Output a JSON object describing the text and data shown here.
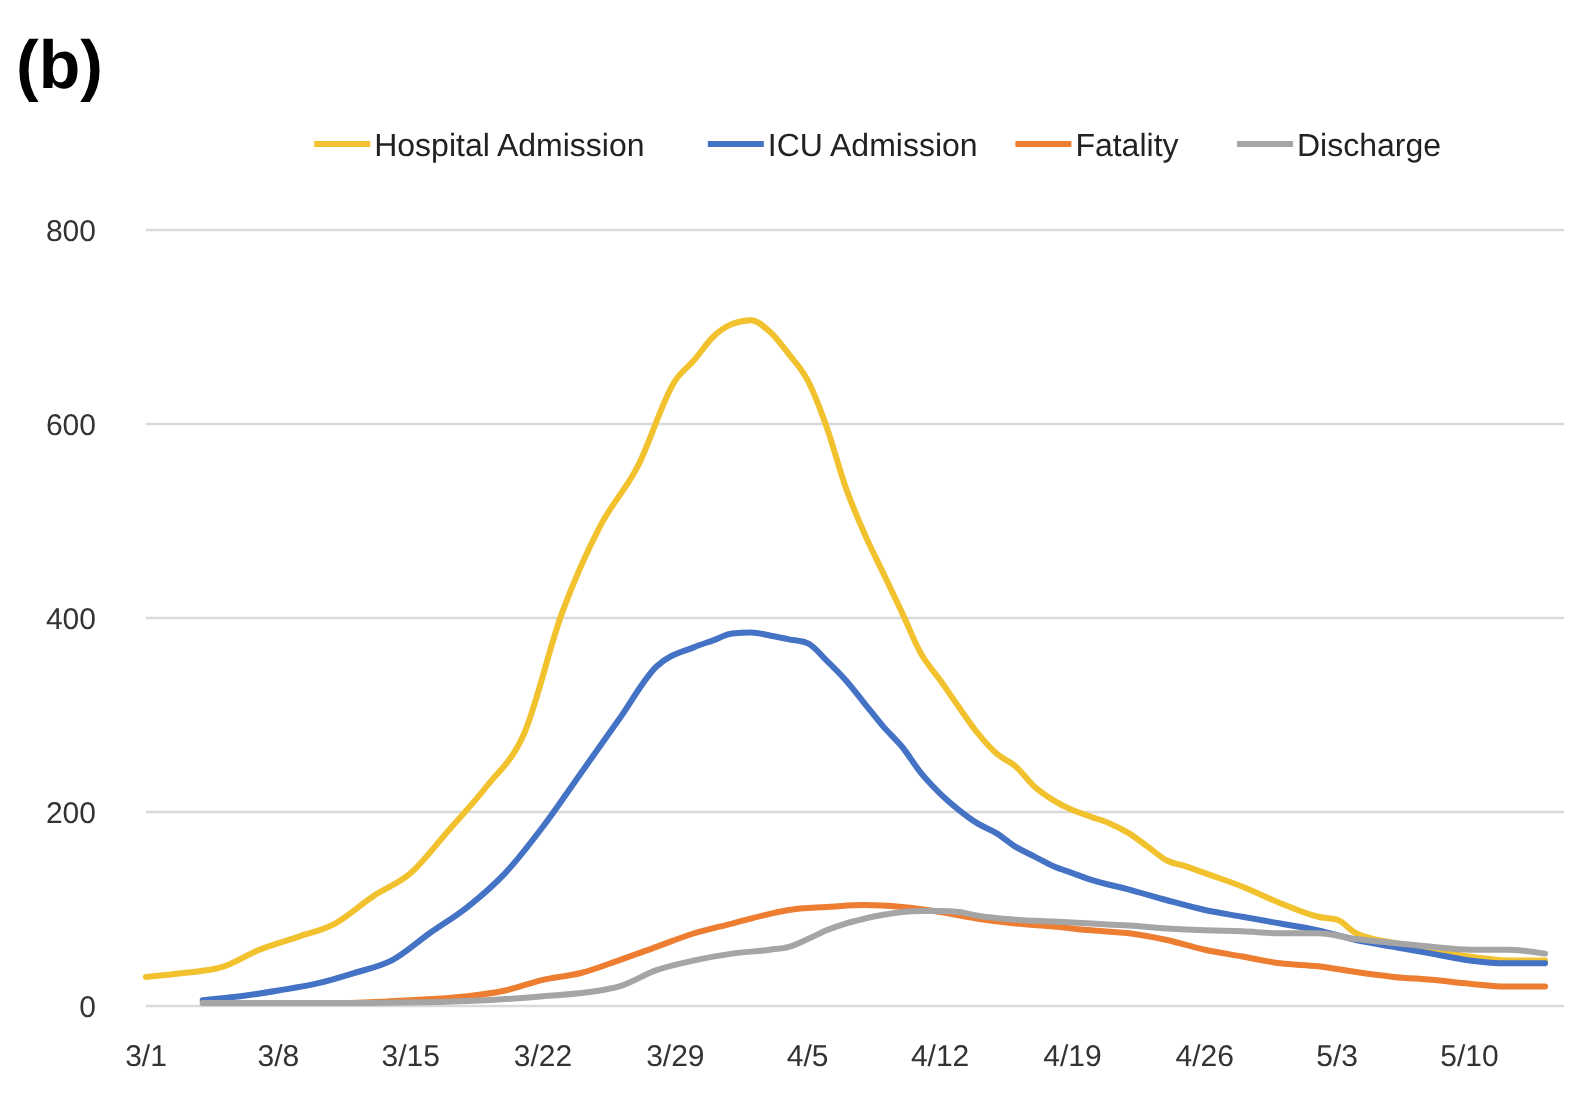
{
  "chart_data": {
    "type": "line",
    "title": "(b)",
    "legend": "top",
    "grid": "y",
    "marker": "none",
    "line_style": "solid",
    "xlim": [
      "--03-01",
      "--05-15"
    ],
    "xticks": [
      {
        "value": "--03-01",
        "label": "3/1"
      },
      {
        "value": "--03-08",
        "label": "3/8"
      },
      {
        "value": "--03-15",
        "label": "3/15"
      },
      {
        "value": "--03-22",
        "label": "3/22"
      },
      {
        "value": "--03-29",
        "label": "3/29"
      },
      {
        "value": "--04-05",
        "label": "4/5"
      },
      {
        "value": "--04-12",
        "label": "4/12"
      },
      {
        "value": "--04-19",
        "label": "4/19"
      },
      {
        "value": "--04-26",
        "label": "4/26"
      },
      {
        "value": "--05-03",
        "label": "5/3"
      },
      {
        "value": "--05-10",
        "label": "5/10"
      }
    ],
    "ylim": [
      0,
      800
    ],
    "yticks": [
      0,
      200,
      400,
      600,
      800
    ],
    "series": [
      {
        "name": "Hospital Admission",
        "color": "#f2c12e",
        "x": [
          "--03-01",
          "--03-03",
          "--03-05",
          "--03-07",
          "--03-09",
          "--03-11",
          "--03-13",
          "--03-15",
          "--03-17",
          "--03-19",
          "--03-21",
          "--03-23",
          "--03-25",
          "--03-27",
          "--03-29",
          "--03-30",
          "--03-31",
          "--04-01",
          "--04-02",
          "--04-03",
          "--04-04",
          "--04-05",
          "--04-06",
          "--04-07",
          "--04-08",
          "--04-09",
          "--04-10",
          "--04-11",
          "--04-12",
          "--04-13",
          "--04-14",
          "--04-15",
          "--04-16",
          "--04-17",
          "--04-18",
          "--04-19",
          "--04-20",
          "--04-21",
          "--04-22",
          "--04-23",
          "--04-24",
          "--04-25",
          "--04-26",
          "--04-28",
          "--04-30",
          "--05-02",
          "--05-03",
          "--05-04",
          "--05-06",
          "--05-08",
          "--05-10",
          "--05-12",
          "--05-14"
        ],
        "values": [
          30,
          34,
          40,
          58,
          71,
          85,
          113,
          137,
          181,
          226,
          281,
          405,
          494,
          556,
          645,
          666,
          690,
          703,
          707,
          695,
          672,
          645,
          597,
          535,
          487,
          446,
          405,
          363,
          336,
          308,
          281,
          260,
          247,
          226,
          212,
          202,
          195,
          188,
          178,
          164,
          150,
          144,
          137,
          123,
          106,
          92,
          89,
          75,
          65,
          58,
          51,
          47,
          47
        ]
      },
      {
        "name": "ICU Admission",
        "color": "#4472c4",
        "x": [
          "--03-04",
          "--03-06",
          "--03-08",
          "--03-10",
          "--03-12",
          "--03-14",
          "--03-16",
          "--03-18",
          "--03-20",
          "--03-22",
          "--03-24",
          "--03-26",
          "--03-28",
          "--03-30",
          "--03-31",
          "--04-01",
          "--04-02",
          "--04-03",
          "--04-04",
          "--04-05",
          "--04-06",
          "--04-07",
          "--04-08",
          "--04-09",
          "--04-10",
          "--04-11",
          "--04-12",
          "--04-13",
          "--04-14",
          "--04-15",
          "--04-16",
          "--04-17",
          "--04-18",
          "--04-19",
          "--04-20",
          "--04-22",
          "--04-24",
          "--04-26",
          "--04-28",
          "--04-30",
          "--05-02",
          "--05-04",
          "--05-06",
          "--05-08",
          "--05-10",
          "--05-12",
          "--05-14"
        ],
        "values": [
          6,
          10,
          16,
          23,
          34,
          47,
          75,
          102,
          137,
          185,
          240,
          295,
          350,
          370,
          377,
          384,
          385,
          382,
          378,
          374,
          356,
          336,
          312,
          288,
          267,
          240,
          219,
          202,
          188,
          178,
          164,
          154,
          144,
          137,
          130,
          120,
          109,
          99,
          92,
          85,
          78,
          68,
          61,
          54,
          47,
          44,
          44
        ]
      },
      {
        "name": "Fatality",
        "color": "#ed7d31",
        "x": [
          "--03-04",
          "--03-11",
          "--03-15",
          "--03-18",
          "--03-20",
          "--03-22",
          "--03-24",
          "--03-26",
          "--03-28",
          "--03-30",
          "--04-01",
          "--04-03",
          "--04-04",
          "--04-06",
          "--04-08",
          "--04-10",
          "--04-12",
          "--04-14",
          "--04-16",
          "--04-18",
          "--04-20",
          "--04-22",
          "--04-24",
          "--04-26",
          "--04-28",
          "--04-30",
          "--05-02",
          "--05-04",
          "--05-06",
          "--05-08",
          "--05-10",
          "--05-12",
          "--05-14"
        ],
        "values": [
          3,
          3,
          6,
          10,
          16,
          27,
          34,
          47,
          61,
          75,
          85,
          95,
          99,
          102,
          104,
          102,
          97,
          90,
          85,
          82,
          78,
          75,
          68,
          58,
          51,
          44,
          41,
          35,
          30,
          27,
          23,
          20,
          20
        ]
      },
      {
        "name": "Discharge",
        "color": "#a5a5a5",
        "x": [
          "--03-04",
          "--03-13",
          "--03-19",
          "--03-22",
          "--03-25",
          "--03-26",
          "--03-28",
          "--03-30",
          "--04-01",
          "--04-03",
          "--04-04",
          "--04-05",
          "--04-06",
          "--04-07",
          "--04-08",
          "--04-09",
          "--04-10",
          "--04-11",
          "--04-12",
          "--04-13",
          "--04-14",
          "--04-16",
          "--04-18",
          "--04-20",
          "--04-22",
          "--04-24",
          "--04-26",
          "--04-28",
          "--04-30",
          "--05-02",
          "--05-04",
          "--05-06",
          "--05-08",
          "--05-10",
          "--05-12",
          "--05-14"
        ],
        "values": [
          3,
          3,
          6,
          10,
          16,
          20,
          37,
          47,
          54,
          58,
          61,
          69,
          78,
          85,
          90,
          94,
          97,
          98,
          98,
          97,
          93,
          89,
          87,
          85,
          83,
          80,
          78,
          77,
          75,
          75,
          69,
          65,
          61,
          58,
          58,
          54
        ]
      }
    ]
  }
}
